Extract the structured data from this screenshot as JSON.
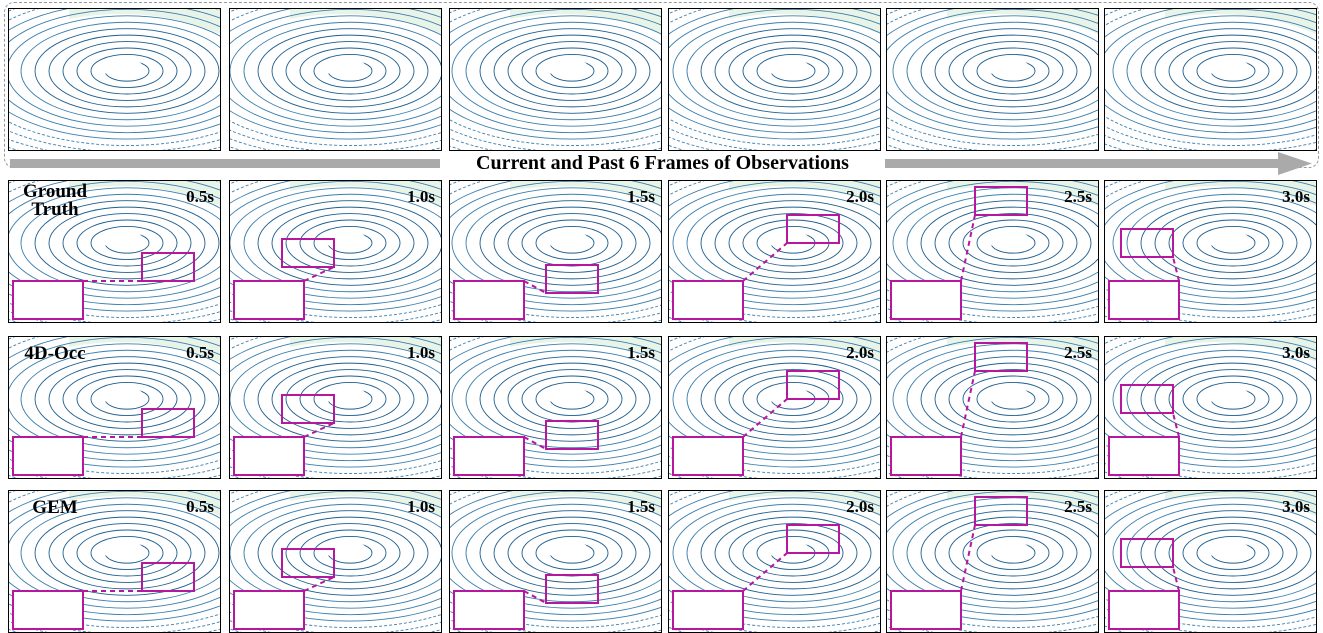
{
  "caption": "Current and Past 6 Frames of Observations",
  "rows": [
    {
      "label": "Ground Truth",
      "times": [
        "0.5s",
        "1.0s",
        "1.5s",
        "2.0s",
        "2.5s",
        "3.0s"
      ]
    },
    {
      "label": "4D-Occ",
      "times": [
        "0.5s",
        "1.0s",
        "1.5s",
        "2.0s",
        "2.5s",
        "3.0s"
      ]
    },
    {
      "label": "GEM",
      "times": [
        "0.5s",
        "1.0s",
        "1.5s",
        "2.0s",
        "2.5s",
        "3.0s"
      ]
    }
  ]
}
